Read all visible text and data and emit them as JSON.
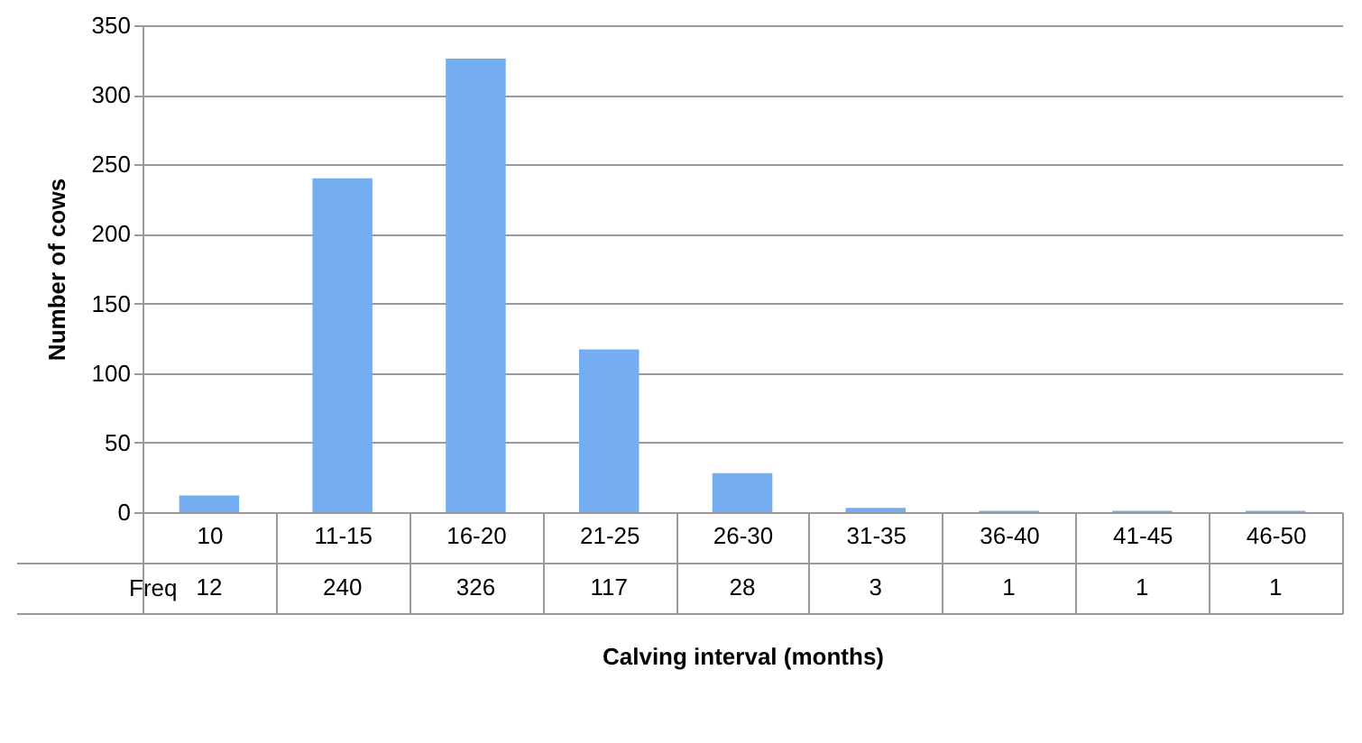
{
  "chart_data": {
    "type": "bar",
    "xlabel": "Calving interval (months)",
    "ylabel": "Number of cows",
    "categories": [
      "10",
      "11-15",
      "16-20",
      "21-25",
      "26-30",
      "31-35",
      "36-40",
      "41-45",
      "46-50"
    ],
    "series": [
      {
        "name": "Freq",
        "color": "#74aef0",
        "values": [
          12,
          240,
          326,
          117,
          28,
          3,
          1,
          1,
          1
        ]
      }
    ],
    "ylim": [
      0,
      350
    ],
    "yticks": [
      0,
      50,
      100,
      150,
      200,
      250,
      300,
      350
    ],
    "grid": "y",
    "data_labels": true
  }
}
